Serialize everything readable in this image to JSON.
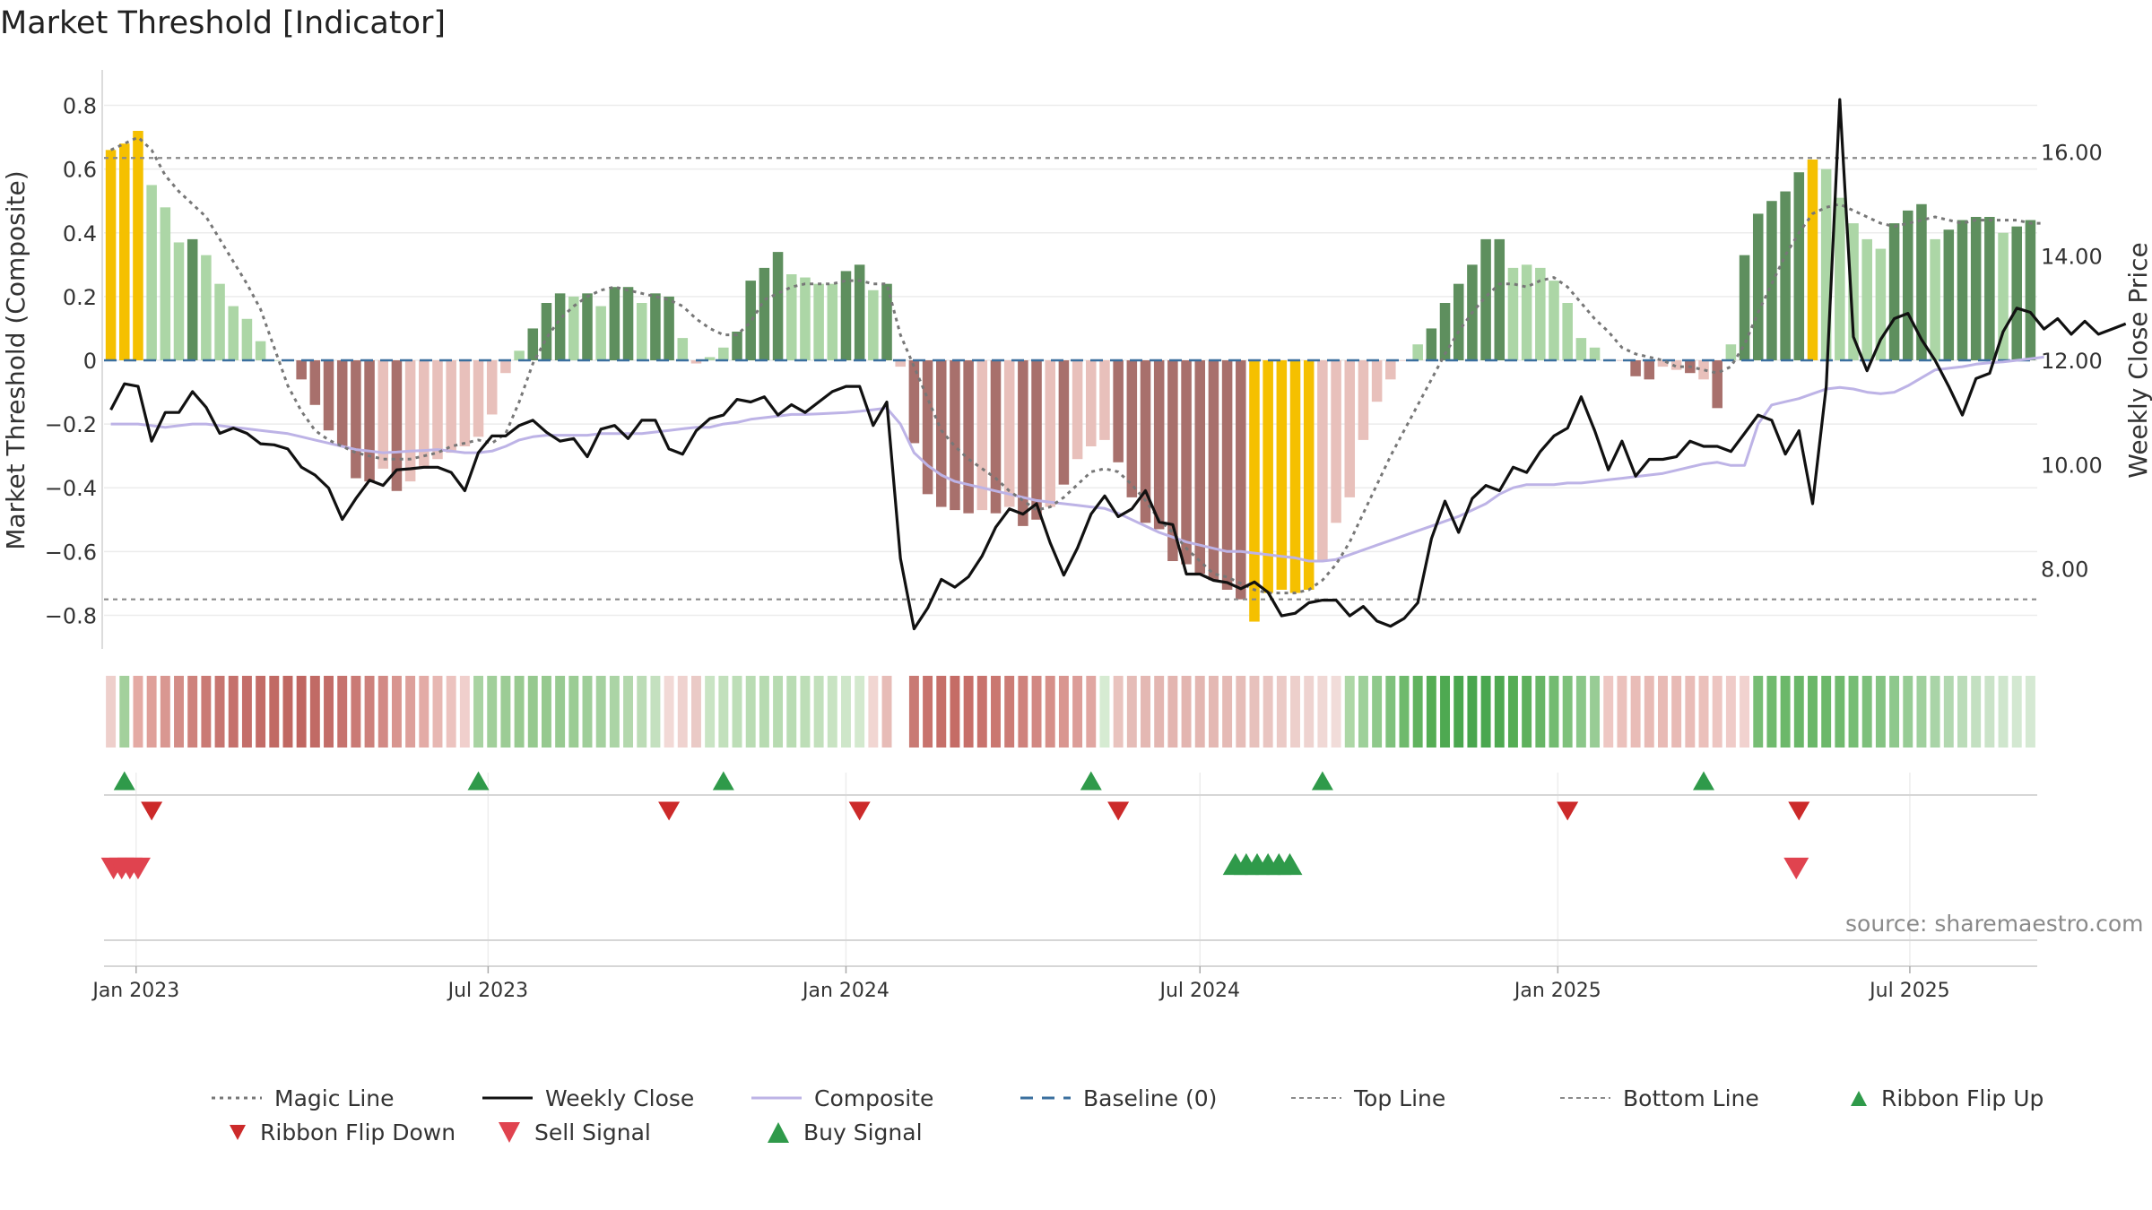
{
  "title": "Market Threshold [Indicator]",
  "watermark": "source: sharemaestro.com",
  "colors": {
    "yellow": "#f5c000",
    "strong_green": "#5e8f5e",
    "light_green": "#acd6a6",
    "strong_red": "#a8706c",
    "light_red": "#e8c0bb",
    "magic": "#777777",
    "close": "#111111",
    "composite": "#bdb3e6",
    "baseline": "#3a6f9e",
    "threshold_line": "#8a8a8a",
    "flip_up": "#2f9a4a",
    "flip_down": "#cc2a2a",
    "sell": "#e0434f",
    "buy": "#2f9a4a"
  },
  "chart_data": {
    "type": "bar",
    "x_unit": "week",
    "x_start": "2022-12-19",
    "xticks": [
      {
        "label": "Jan 2023",
        "date": "2023-01-01"
      },
      {
        "label": "Jul 2023",
        "date": "2023-07-01"
      },
      {
        "label": "Jan 2024",
        "date": "2024-01-01"
      },
      {
        "label": "Jul 2024",
        "date": "2024-07-01"
      },
      {
        "label": "Jan 2025",
        "date": "2025-01-01"
      },
      {
        "label": "Jul 2025",
        "date": "2025-07-01"
      }
    ],
    "ylabel": "Market Threshold (Composite)",
    "ylim": [
      -0.9,
      0.9
    ],
    "yticks": [
      0.8,
      0.6,
      0.4,
      0.2,
      0,
      -0.2,
      -0.4,
      -0.6,
      -0.8
    ],
    "ytick_labels": [
      "0.8",
      "0.6",
      "0.4",
      "0.2",
      "0",
      "−0.2",
      "−0.4",
      "−0.6",
      "−0.8"
    ],
    "y2label": "Weekly Close Price",
    "y2lim": [
      6.5,
      17.5
    ],
    "y2ticks": [
      8,
      10,
      12,
      14,
      16
    ],
    "y2tick_labels": [
      "8.00",
      "10.00",
      "12.00",
      "14.00",
      "16.00"
    ],
    "top_line": 0.635,
    "bottom_line": -0.75,
    "baseline": 0,
    "bars": {
      "values": [
        0.66,
        0.68,
        0.72,
        0.55,
        0.48,
        0.37,
        0.38,
        0.33,
        0.24,
        0.17,
        0.13,
        0.06,
        0.0,
        0.0,
        -0.06,
        -0.14,
        -0.22,
        -0.27,
        -0.37,
        -0.38,
        -0.34,
        -0.41,
        -0.38,
        -0.34,
        -0.31,
        -0.29,
        -0.27,
        -0.24,
        -0.17,
        -0.04,
        0.03,
        0.1,
        0.18,
        0.21,
        0.2,
        0.21,
        0.17,
        0.23,
        0.23,
        0.18,
        0.21,
        0.2,
        0.07,
        -0.01,
        0.01,
        0.04,
        0.09,
        0.25,
        0.29,
        0.34,
        0.27,
        0.26,
        0.24,
        0.24,
        0.28,
        0.3,
        0.22,
        0.24,
        -0.02,
        -0.26,
        -0.42,
        -0.46,
        -0.47,
        -0.48,
        -0.47,
        -0.48,
        -0.46,
        -0.52,
        -0.5,
        -0.46,
        -0.39,
        -0.31,
        -0.27,
        -0.25,
        -0.32,
        -0.43,
        -0.51,
        -0.53,
        -0.63,
        -0.64,
        -0.67,
        -0.69,
        -0.72,
        -0.75,
        -0.82,
        -0.73,
        -0.72,
        -0.73,
        -0.72,
        -0.63,
        -0.51,
        -0.43,
        -0.25,
        -0.13,
        -0.06,
        0.0,
        0.05,
        0.1,
        0.18,
        0.24,
        0.3,
        0.38,
        0.38,
        0.29,
        0.3,
        0.29,
        0.25,
        0.18,
        0.07,
        0.04,
        0.0,
        0.0,
        -0.05,
        -0.06,
        -0.02,
        -0.03,
        -0.04,
        -0.06,
        -0.15,
        0.05,
        0.33,
        0.46,
        0.5,
        0.53,
        0.59,
        0.63,
        0.6,
        0.51,
        0.43,
        0.38,
        0.35,
        0.43,
        0.47,
        0.49,
        0.38,
        0.41,
        0.44,
        0.45,
        0.45,
        0.4,
        0.42,
        0.44
      ],
      "colors": [
        "yellow",
        "yellow",
        "yellow",
        "light_green",
        "light_green",
        "light_green",
        "strong_green",
        "light_green",
        "light_green",
        "light_green",
        "light_green",
        "light_green",
        "light_green",
        "light_red",
        "strong_red",
        "strong_red",
        "strong_red",
        "strong_red",
        "strong_red",
        "strong_red",
        "light_red",
        "strong_red",
        "light_red",
        "light_red",
        "light_red",
        "light_red",
        "light_red",
        "light_red",
        "light_red",
        "light_red",
        "light_green",
        "strong_green",
        "strong_green",
        "strong_green",
        "light_green",
        "strong_green",
        "light_green",
        "strong_green",
        "strong_green",
        "light_green",
        "strong_green",
        "strong_green",
        "light_green",
        "light_red",
        "light_green",
        "light_green",
        "strong_green",
        "strong_green",
        "strong_green",
        "strong_green",
        "light_green",
        "light_green",
        "light_green",
        "light_green",
        "strong_green",
        "strong_green",
        "light_green",
        "strong_green",
        "light_red",
        "strong_red",
        "strong_red",
        "strong_red",
        "strong_red",
        "strong_red",
        "light_red",
        "strong_red",
        "light_red",
        "strong_red",
        "strong_red",
        "light_red",
        "strong_red",
        "light_red",
        "light_red",
        "light_red",
        "strong_red",
        "strong_red",
        "strong_red",
        "strong_red",
        "strong_red",
        "strong_red",
        "strong_red",
        "strong_red",
        "strong_red",
        "strong_red",
        "yellow",
        "yellow",
        "yellow",
        "yellow",
        "yellow",
        "light_red",
        "light_red",
        "light_red",
        "light_red",
        "light_red",
        "light_red",
        "light_red",
        "light_green",
        "strong_green",
        "strong_green",
        "strong_green",
        "strong_green",
        "strong_green",
        "strong_green",
        "light_green",
        "light_green",
        "light_green",
        "light_green",
        "light_green",
        "light_green",
        "light_green",
        "light_red",
        "light_red",
        "strong_red",
        "strong_red",
        "light_red",
        "light_red",
        "strong_red",
        "light_red",
        "strong_red",
        "light_green",
        "strong_green",
        "strong_green",
        "strong_green",
        "strong_green",
        "strong_green",
        "yellow",
        "light_green",
        "light_green",
        "light_green",
        "light_green",
        "light_green",
        "strong_green",
        "strong_green",
        "strong_green",
        "light_green",
        "strong_green",
        "strong_green",
        "strong_green",
        "strong_green",
        "light_green",
        "strong_green",
        "strong_green"
      ]
    },
    "series": [
      {
        "name": "Magic Line",
        "axis": "left",
        "x_step": 1,
        "values": [
          0.66,
          0.68,
          0.7,
          0.66,
          0.58,
          0.53,
          0.49,
          0.45,
          0.38,
          0.31,
          0.24,
          0.16,
          0.04,
          -0.08,
          -0.16,
          -0.22,
          -0.25,
          -0.27,
          -0.29,
          -0.3,
          -0.31,
          -0.31,
          -0.31,
          -0.3,
          -0.29,
          -0.27,
          -0.26,
          -0.25,
          -0.26,
          -0.23,
          -0.13,
          -0.01,
          0.07,
          0.13,
          0.17,
          0.2,
          0.22,
          0.23,
          0.22,
          0.21,
          0.2,
          0.19,
          0.17,
          0.13,
          0.1,
          0.08,
          0.08,
          0.12,
          0.19,
          0.21,
          0.23,
          0.24,
          0.24,
          0.24,
          0.25,
          0.25,
          0.24,
          0.24,
          0.08,
          -0.02,
          -0.12,
          -0.22,
          -0.27,
          -0.31,
          -0.34,
          -0.37,
          -0.41,
          -0.44,
          -0.47,
          -0.46,
          -0.43,
          -0.39,
          -0.35,
          -0.34,
          -0.35,
          -0.39,
          -0.44,
          -0.5,
          -0.54,
          -0.59,
          -0.63,
          -0.67,
          -0.68,
          -0.7,
          -0.72,
          -0.73,
          -0.73,
          -0.73,
          -0.72,
          -0.69,
          -0.64,
          -0.57,
          -0.48,
          -0.39,
          -0.3,
          -0.22,
          -0.14,
          -0.06,
          0.02,
          0.09,
          0.15,
          0.2,
          0.24,
          0.24,
          0.23,
          0.25,
          0.26,
          0.23,
          0.18,
          0.13,
          0.09,
          0.04,
          0.02,
          0.01,
          0.0,
          -0.02,
          -0.02,
          -0.03,
          -0.04,
          -0.02,
          0.05,
          0.15,
          0.24,
          0.33,
          0.4,
          0.46,
          0.48,
          0.49,
          0.47,
          0.45,
          0.43,
          0.42,
          0.43,
          0.44,
          0.45,
          0.44,
          0.43,
          0.44,
          0.44,
          0.44,
          0.44,
          0.43,
          0.43
        ]
      },
      {
        "name": "Weekly Close",
        "axis": "right",
        "x_step": 1,
        "values": [
          11.05,
          11.55,
          11.5,
          10.45,
          11,
          11.0,
          11.4,
          11.1,
          10.6,
          10.7,
          10.6,
          10.4,
          10.38,
          10.3,
          9.95,
          9.8,
          9.55,
          8.95,
          9.35,
          9.7,
          9.6,
          9.9,
          9.92,
          9.95,
          9.95,
          9.85,
          9.5,
          10.23,
          10.55,
          10.55,
          10.75,
          10.85,
          10.62,
          10.45,
          10.5,
          10.15,
          10.68,
          10.75,
          10.5,
          10.85,
          10.85,
          10.3,
          10.2,
          10.65,
          10.88,
          10.95,
          11.25,
          11.2,
          11.3,
          10.95,
          11.15,
          11,
          11.2,
          11.4,
          11.5,
          11.5,
          10.75,
          11.2,
          8.2,
          6.85,
          7.25,
          7.8,
          7.65,
          7.85,
          8.25,
          8.8,
          9.15,
          9.05,
          9.25,
          8.5,
          7.88,
          8.4,
          9.05,
          9.4,
          9.0,
          9.15,
          9.5,
          8.9,
          8.85,
          7.9,
          7.9,
          7.78,
          7.74,
          7.62,
          7.75,
          7.55,
          7.1,
          7.15,
          7.35,
          7.4,
          7.4,
          7.1,
          7.28,
          7.0,
          6.9,
          7.05,
          7.35,
          8.58,
          9.3,
          8.7,
          9.35,
          9.6,
          9.5,
          9.95,
          9.85,
          10.25,
          10.55,
          10.7,
          11.3,
          10.65,
          9.9,
          10.45,
          9.78,
          10.1,
          10.1,
          10.15,
          10.45,
          10.35,
          10.35,
          10.25,
          10.6,
          10.95,
          10.85,
          10.2,
          10.65,
          9.25,
          11.5,
          17.0,
          12.45,
          11.8,
          12.4,
          12.8,
          12.9,
          12.4,
          12.0,
          11.5,
          10.95,
          11.65,
          11.75,
          12.55,
          13,
          12.92,
          12.6,
          12.8,
          12.5,
          12.75,
          12.5,
          12.6,
          12.7
        ]
      },
      {
        "name": "Composite",
        "axis": "left",
        "x_step": 1,
        "values": [
          -0.2,
          -0.2,
          -0.2,
          -0.205,
          -0.21,
          -0.205,
          -0.2,
          -0.2,
          -0.205,
          -0.21,
          -0.215,
          -0.22,
          -0.225,
          -0.23,
          -0.24,
          -0.25,
          -0.26,
          -0.27,
          -0.28,
          -0.285,
          -0.29,
          -0.288,
          -0.285,
          -0.283,
          -0.28,
          -0.285,
          -0.29,
          -0.29,
          -0.285,
          -0.27,
          -0.25,
          -0.24,
          -0.235,
          -0.235,
          -0.235,
          -0.235,
          -0.23,
          -0.23,
          -0.23,
          -0.23,
          -0.225,
          -0.22,
          -0.215,
          -0.21,
          -0.21,
          -0.2,
          -0.195,
          -0.185,
          -0.18,
          -0.175,
          -0.17,
          -0.17,
          -0.168,
          -0.166,
          -0.164,
          -0.16,
          -0.155,
          -0.15,
          -0.2,
          -0.29,
          -0.33,
          -0.36,
          -0.38,
          -0.39,
          -0.4,
          -0.41,
          -0.42,
          -0.43,
          -0.44,
          -0.445,
          -0.45,
          -0.455,
          -0.46,
          -0.465,
          -0.48,
          -0.5,
          -0.52,
          -0.54,
          -0.555,
          -0.57,
          -0.58,
          -0.59,
          -0.6,
          -0.6,
          -0.605,
          -0.61,
          -0.615,
          -0.62,
          -0.63,
          -0.63,
          -0.625,
          -0.61,
          -0.595,
          -0.58,
          -0.565,
          -0.55,
          -0.535,
          -0.52,
          -0.505,
          -0.49,
          -0.47,
          -0.45,
          -0.42,
          -0.4,
          -0.39,
          -0.39,
          -0.39,
          -0.385,
          -0.385,
          -0.38,
          -0.375,
          -0.37,
          -0.365,
          -0.36,
          -0.355,
          -0.345,
          -0.335,
          -0.325,
          -0.32,
          -0.33,
          -0.33,
          -0.2,
          -0.14,
          -0.13,
          -0.12,
          -0.105,
          -0.09,
          -0.085,
          -0.09,
          -0.1,
          -0.105,
          -0.1,
          -0.08,
          -0.055,
          -0.03,
          -0.025,
          -0.02,
          -0.012,
          -0.008,
          -0.005,
          -0.0,
          0.005,
          0.01
        ]
      }
    ],
    "ribbon": {
      "name": "Ribbon",
      "colors": [
        "#eecfcb",
        "#a3d09c",
        "#e4aaa4",
        "#dfa09a",
        "#d99791",
        "#d38d87",
        "#ce827c",
        "#ca7a74",
        "#c77570",
        "#c5716c",
        "#c46e69",
        "#c36c67",
        "#c16a64",
        "#c06862",
        "#c06661",
        "#c16a65",
        "#c36d68",
        "#c6736e",
        "#ca7a75",
        "#cd817c",
        "#d28a85",
        "#d8958f",
        "#dda09b",
        "#e3aba6",
        "#e7b7b2",
        "#ecc3bf",
        "#f0cfcc",
        "#a8d3a2",
        "#a1cf9a",
        "#9ccc95",
        "#98ca91",
        "#96c98f",
        "#96c98f",
        "#98ca91",
        "#9bcc94",
        "#9fce99",
        "#a5d19f",
        "#abd4a5",
        "#b3d8ad",
        "#bcdcb6",
        "#c4e0bf",
        "#f2d9d6",
        "#efd2cf",
        "#eacac6",
        "#c9e4c4",
        "#c2e0bc",
        "#bddeb7",
        "#b9dcb3",
        "#b7dbb1",
        "#b7dbb1",
        "#b9dcb3",
        "#bddeb7",
        "#c2e0bc",
        "#c8e3c2",
        "#cee6c9",
        "#d3e9ce",
        "#f1d6d2",
        "#e7bcb7",
        "#ffffff",
        "#c97a74",
        "#c8736d",
        "#c66f69",
        "#c56c66",
        "#c76f69",
        "#c8736d",
        "#ca7770",
        "#cc7c76",
        "#cf827c",
        "#d28882",
        "#d68f89",
        "#d99690",
        "#dc9d98",
        "#e0a6a1",
        "#d6ebd2",
        "#e9c3be",
        "#e5bcb7",
        "#e4b8b3",
        "#e3b6b1",
        "#e3b5b0",
        "#e3b5b0",
        "#e3b6b1",
        "#e4b8b3",
        "#e5bab5",
        "#e6bdb8",
        "#e7c1bc",
        "#e9c5c1",
        "#ebcac6",
        "#edcfcb",
        "#eed3d0",
        "#f0d8d5",
        "#f1dcd9",
        "#add7a6",
        "#9ed09a",
        "#8fc98b",
        "#7fc17c",
        "#6fba6d",
        "#61b35f",
        "#55ad54",
        "#4ea951",
        "#4aa74f",
        "#49a64e",
        "#4aa74f",
        "#4ea951",
        "#55ad54",
        "#5eb15c",
        "#68b666",
        "#73bb71",
        "#7fc17c",
        "#8bc789",
        "#98cc95",
        "#eec7c3",
        "#ebc1bc",
        "#e9bcb7",
        "#e8bab5",
        "#e8bab5",
        "#e8bab5",
        "#e9bcb7",
        "#ebc0bb",
        "#edc5c1",
        "#efcbc8",
        "#f1d2cf",
        "#76bd74",
        "#70ba6e",
        "#6cb86a",
        "#6ab769",
        "#6ab769",
        "#6cb86a",
        "#70ba6e",
        "#76bd74",
        "#7dc07b",
        "#85c483",
        "#8ec88c",
        "#97cc95",
        "#a0d09e",
        "#a9d4a7",
        "#b2d8b0",
        "#bbdcb9",
        "#c3e0c1",
        "#cae3c8",
        "#cfe6cd",
        "#d3e8d1",
        "#d5e9d3"
      ]
    },
    "ribbon_flip_up": {
      "name": "Ribbon Flip Up",
      "x": [
        1,
        27,
        45,
        72,
        89,
        117
      ]
    },
    "ribbon_flip_down": {
      "name": "Ribbon Flip Down",
      "x": [
        3,
        41,
        55,
        74,
        107,
        124
      ]
    },
    "sell_signal": {
      "name": "Sell Signal",
      "x": [
        0.2,
        0.8,
        1.4,
        2.0,
        123.8
      ]
    },
    "buy_signal": {
      "name": "Buy Signal",
      "x": [
        82.6,
        83.4,
        84.2,
        85.0,
        85.8,
        86.6
      ]
    },
    "legend": [
      {
        "name": "Magic Line",
        "kind": "dotted",
        "color": "magic"
      },
      {
        "name": "Weekly Close",
        "kind": "solid",
        "color": "close"
      },
      {
        "name": "Composite",
        "kind": "solid",
        "color": "composite"
      },
      {
        "name": "Baseline (0)",
        "kind": "dashed",
        "color": "baseline"
      },
      {
        "name": "Top Line",
        "kind": "dashed-thin",
        "color": "threshold_line"
      },
      {
        "name": "Bottom Line",
        "kind": "dashed-thin",
        "color": "threshold_line"
      },
      {
        "name": "Ribbon Flip Up",
        "kind": "tri-up",
        "color": "flip_up"
      },
      {
        "name": "Ribbon Flip Down",
        "kind": "tri-down",
        "color": "flip_down"
      },
      {
        "name": "Sell Signal",
        "kind": "tri-down-big",
        "color": "sell"
      },
      {
        "name": "Buy Signal",
        "kind": "tri-up-big",
        "color": "buy"
      }
    ]
  }
}
